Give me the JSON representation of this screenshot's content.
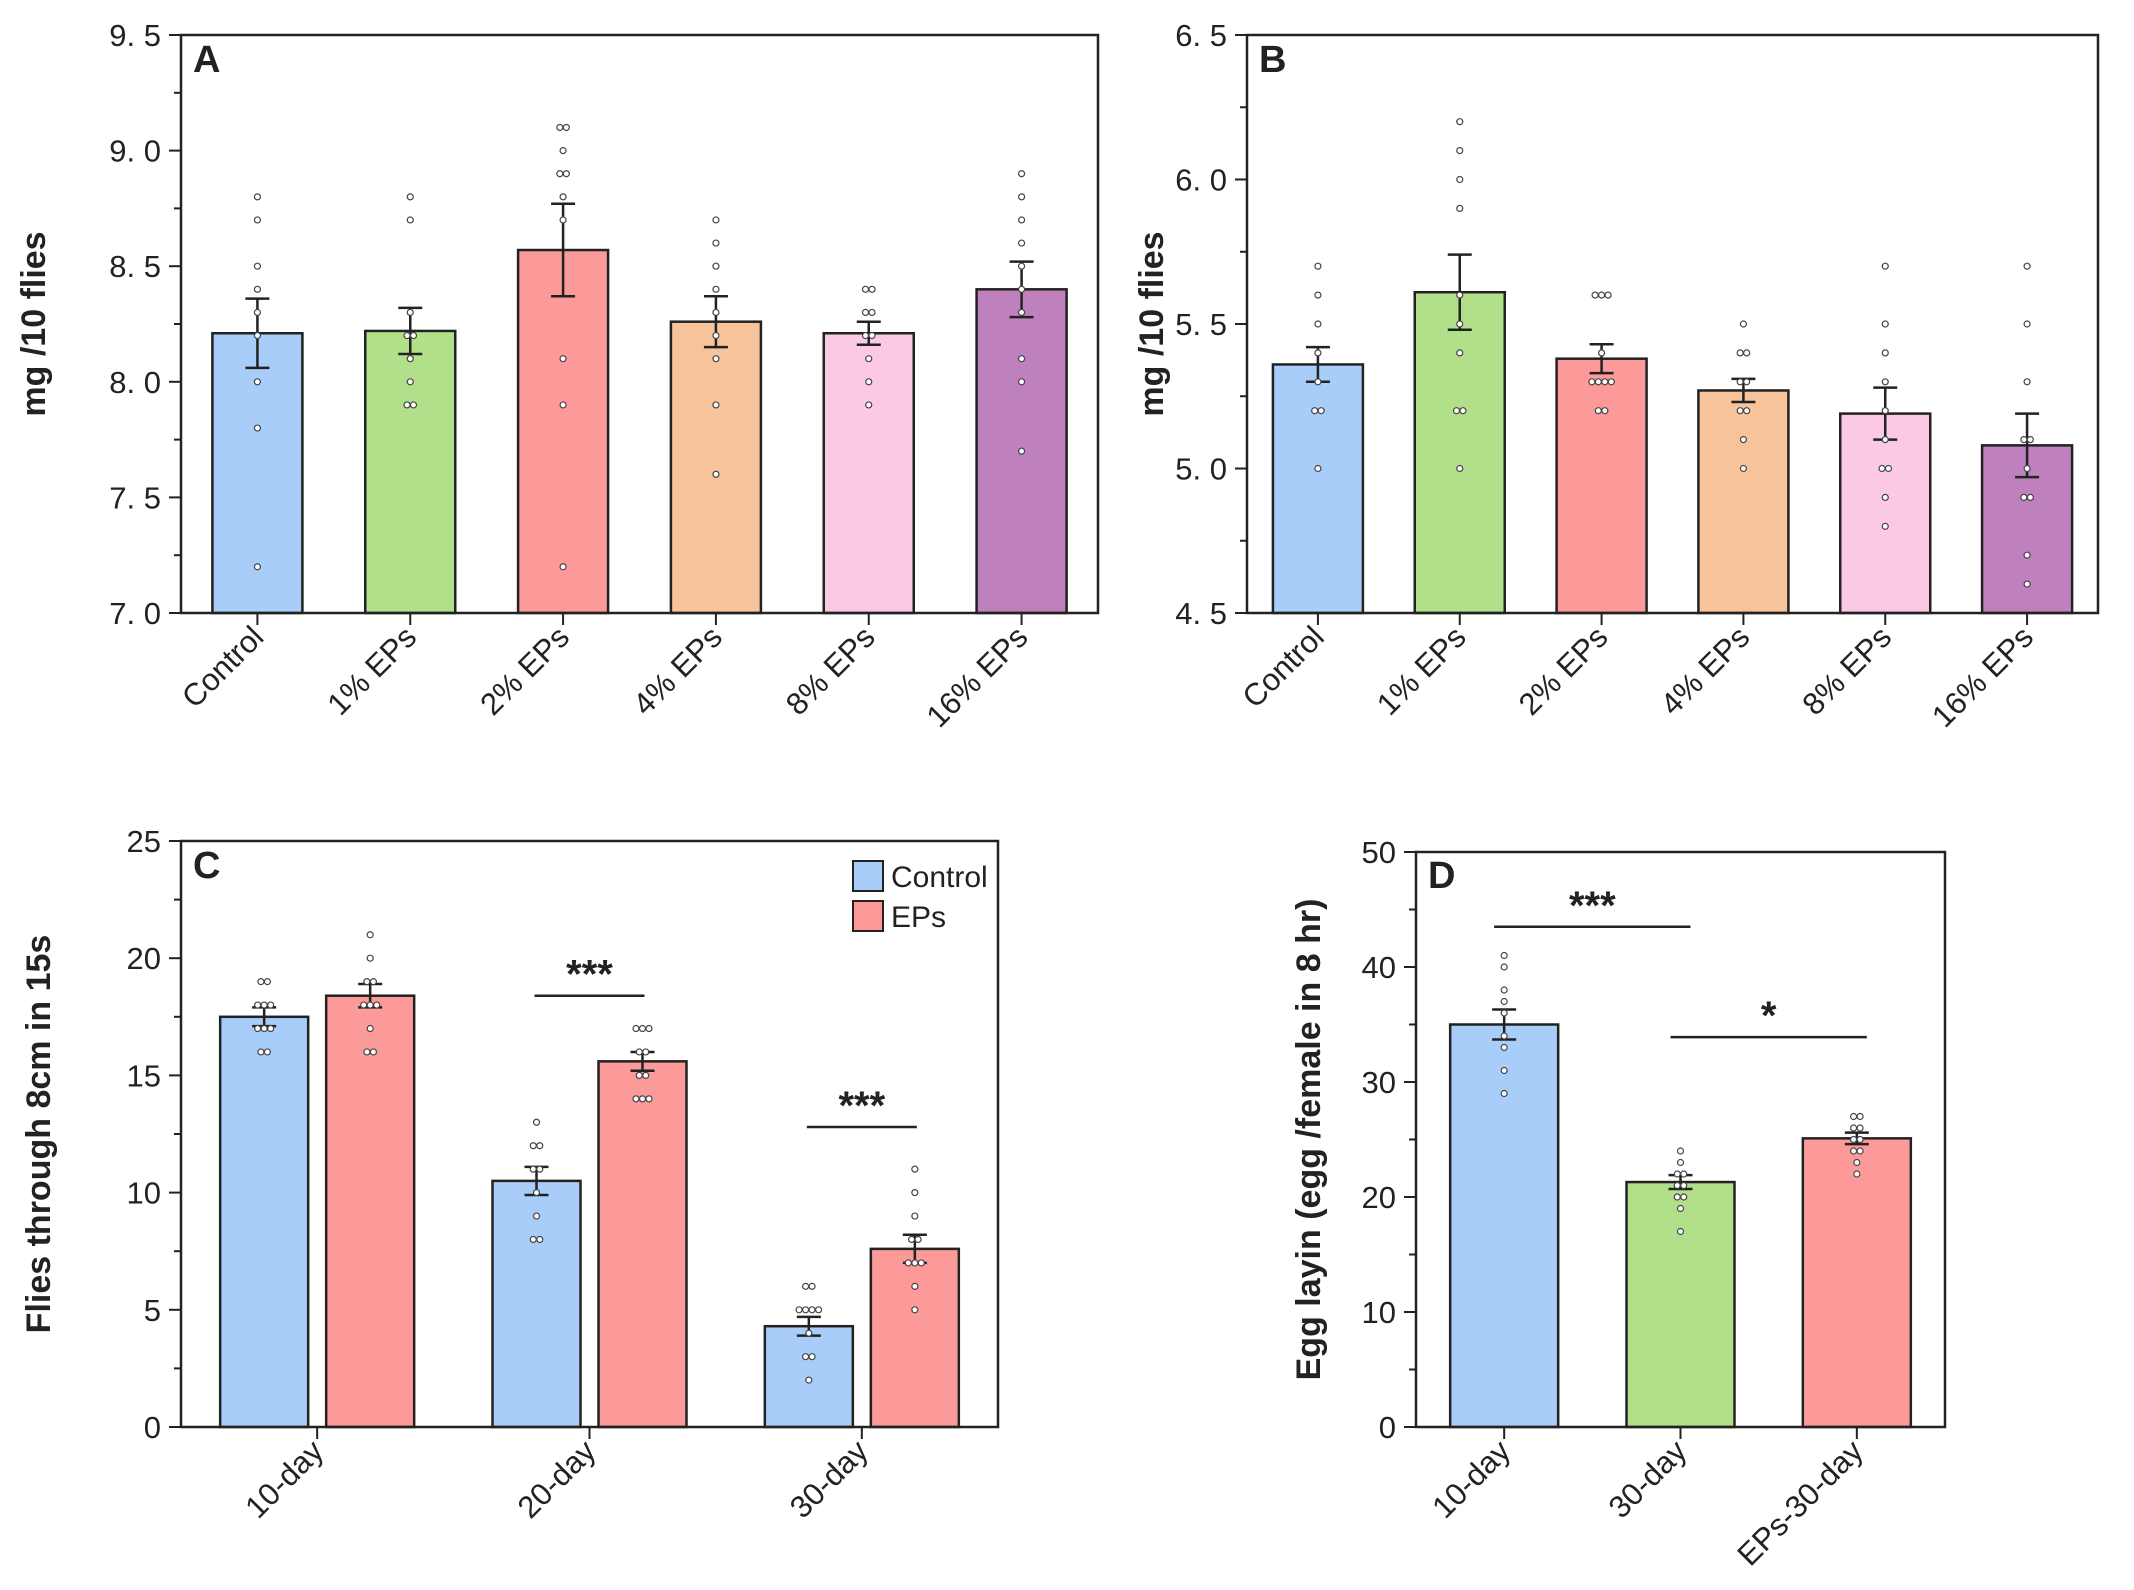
{
  "figure": {
    "panels": [
      "A",
      "B",
      "C",
      "D"
    ]
  },
  "chart_data": [
    {
      "panel": "A",
      "type": "bar",
      "title": "",
      "xlabel": "",
      "ylabel": "mg /10 flies",
      "ylim": [
        7.0,
        9.5
      ],
      "yticks": [
        7.0,
        7.5,
        8.0,
        8.5,
        9.0,
        9.5
      ],
      "ytick_labels": [
        "7. 0",
        "7. 5",
        "8. 0",
        "8. 5",
        "9. 0",
        "9. 5"
      ],
      "categories": [
        "Control",
        "1% EPs",
        "2% EPs",
        "4% EPs",
        "8% EPs",
        "16% EPs"
      ],
      "colors": [
        "#a8cdf8",
        "#b2df8a",
        "#fb9a99",
        "#f7c39a",
        "#fcc9e5",
        "#bf80be"
      ],
      "values": [
        8.21,
        8.22,
        8.57,
        8.26,
        8.21,
        8.4
      ],
      "errors": [
        0.15,
        0.1,
        0.2,
        0.11,
        0.05,
        0.12
      ],
      "points": [
        [
          8.8,
          8.7,
          8.5,
          8.4,
          8.3,
          8.2,
          8.0,
          7.8,
          7.2
        ],
        [
          8.8,
          8.7,
          8.3,
          8.2,
          8.2,
          8.1,
          8.0,
          7.9,
          7.9
        ],
        [
          9.1,
          9.1,
          9.0,
          8.9,
          8.9,
          8.8,
          8.7,
          8.1,
          7.9,
          7.2
        ],
        [
          8.7,
          8.6,
          8.5,
          8.4,
          8.3,
          8.2,
          8.1,
          7.9,
          7.6
        ],
        [
          8.4,
          8.4,
          8.3,
          8.3,
          8.2,
          8.2,
          8.1,
          8.0,
          7.9
        ],
        [
          8.9,
          8.8,
          8.7,
          8.6,
          8.5,
          8.4,
          8.3,
          8.1,
          8.0,
          7.7
        ]
      ]
    },
    {
      "panel": "B",
      "type": "bar",
      "title": "",
      "xlabel": "",
      "ylabel": "mg /10 flies",
      "ylim": [
        4.5,
        6.5
      ],
      "yticks": [
        4.5,
        5.0,
        5.5,
        6.0,
        6.5
      ],
      "ytick_labels": [
        "4. 5",
        "5. 0",
        "5. 5",
        "6. 0",
        "6. 5"
      ],
      "categories": [
        "Control",
        "1% EPs",
        "2% EPs",
        "4% EPs",
        "8% EPs",
        "16% EPs"
      ],
      "colors": [
        "#a8cdf8",
        "#b2df8a",
        "#fb9a99",
        "#f7c39a",
        "#fcc9e5",
        "#bf80be"
      ],
      "values": [
        5.36,
        5.61,
        5.38,
        5.27,
        5.19,
        5.08
      ],
      "errors": [
        0.06,
        0.13,
        0.05,
        0.04,
        0.09,
        0.11
      ],
      "points": [
        [
          5.7,
          5.6,
          5.5,
          5.4,
          5.3,
          5.2,
          5.2,
          5.0
        ],
        [
          6.2,
          6.1,
          6.0,
          5.9,
          5.6,
          5.5,
          5.4,
          5.2,
          5.2,
          5.0
        ],
        [
          5.6,
          5.6,
          5.6,
          5.4,
          5.3,
          5.3,
          5.3,
          5.3,
          5.2,
          5.2
        ],
        [
          5.5,
          5.4,
          5.4,
          5.3,
          5.3,
          5.2,
          5.2,
          5.1,
          5.0
        ],
        [
          5.7,
          5.5,
          5.4,
          5.3,
          5.2,
          5.1,
          5.0,
          5.0,
          4.9,
          4.8
        ],
        [
          5.7,
          5.5,
          5.3,
          5.1,
          5.1,
          5.0,
          4.9,
          4.9,
          4.7,
          4.6
        ]
      ]
    },
    {
      "panel": "C",
      "type": "bar",
      "title": "",
      "xlabel": "",
      "ylabel": "Flies through  8cm in 15s",
      "ylim": [
        0,
        25
      ],
      "yticks": [
        0,
        5,
        10,
        15,
        20,
        25
      ],
      "ytick_labels": [
        "0",
        "5",
        "10",
        "15",
        "20",
        "25"
      ],
      "categories": [
        "10-day",
        "20-day",
        "30-day"
      ],
      "series": [
        {
          "name": "Control",
          "color": "#a8cdf8",
          "values": [
            17.5,
            10.5,
            4.3
          ],
          "errors": [
            0.4,
            0.6,
            0.4
          ],
          "points": [
            [
              19,
              19,
              18,
              18,
              18,
              17,
              17,
              17,
              16,
              16
            ],
            [
              13,
              12,
              12,
              11,
              11,
              10,
              9,
              8,
              8
            ],
            [
              6,
              6,
              5,
              5,
              5,
              5,
              4,
              3,
              3,
              2
            ]
          ]
        },
        {
          "name": "EPs",
          "color": "#fb9a99",
          "values": [
            18.4,
            15.6,
            7.6
          ],
          "errors": [
            0.5,
            0.4,
            0.6
          ],
          "points": [
            [
              21,
              20,
              19,
              19,
              18,
              18,
              18,
              17,
              16,
              16
            ],
            [
              17,
              17,
              17,
              16,
              16,
              15,
              15,
              14,
              14,
              14
            ],
            [
              11,
              10,
              9,
              8,
              8,
              7,
              7,
              7,
              6,
              5
            ]
          ]
        }
      ],
      "legend": [
        "Control",
        "EPs"
      ],
      "legend_position": "top-right",
      "annotations": [
        {
          "text": "***",
          "category": "20-day",
          "y": 18.4
        },
        {
          "text": "***",
          "category": "30-day",
          "y": 12.8
        }
      ]
    },
    {
      "panel": "D",
      "type": "bar",
      "title": "",
      "xlabel": "",
      "ylabel": "Egg layin (egg /female in 8 hr)",
      "ylim": [
        0,
        50
      ],
      "yticks": [
        0,
        10,
        20,
        30,
        40,
        50
      ],
      "ytick_labels": [
        "0",
        "10",
        "20",
        "30",
        "40",
        "50"
      ],
      "categories": [
        "10-day",
        "30-day",
        "EPs-30-day"
      ],
      "colors": [
        "#a8cdf8",
        "#b2df8a",
        "#fb9a99"
      ],
      "values": [
        35.0,
        21.3,
        25.1
      ],
      "errors": [
        1.3,
        0.6,
        0.5
      ],
      "points": [
        [
          41,
          40,
          38,
          37,
          36,
          34,
          33,
          31,
          29
        ],
        [
          24,
          23,
          22,
          22,
          21,
          21,
          20,
          20,
          19,
          17
        ],
        [
          27,
          27,
          26,
          26,
          25,
          25,
          24,
          24,
          23,
          22
        ]
      ],
      "annotations": [
        {
          "text": "***",
          "from": "10-day",
          "to": "30-day",
          "y": 43.5
        },
        {
          "text": "*",
          "from": "30-day",
          "to": "EPs-30-day",
          "y": 33.9
        }
      ]
    }
  ]
}
